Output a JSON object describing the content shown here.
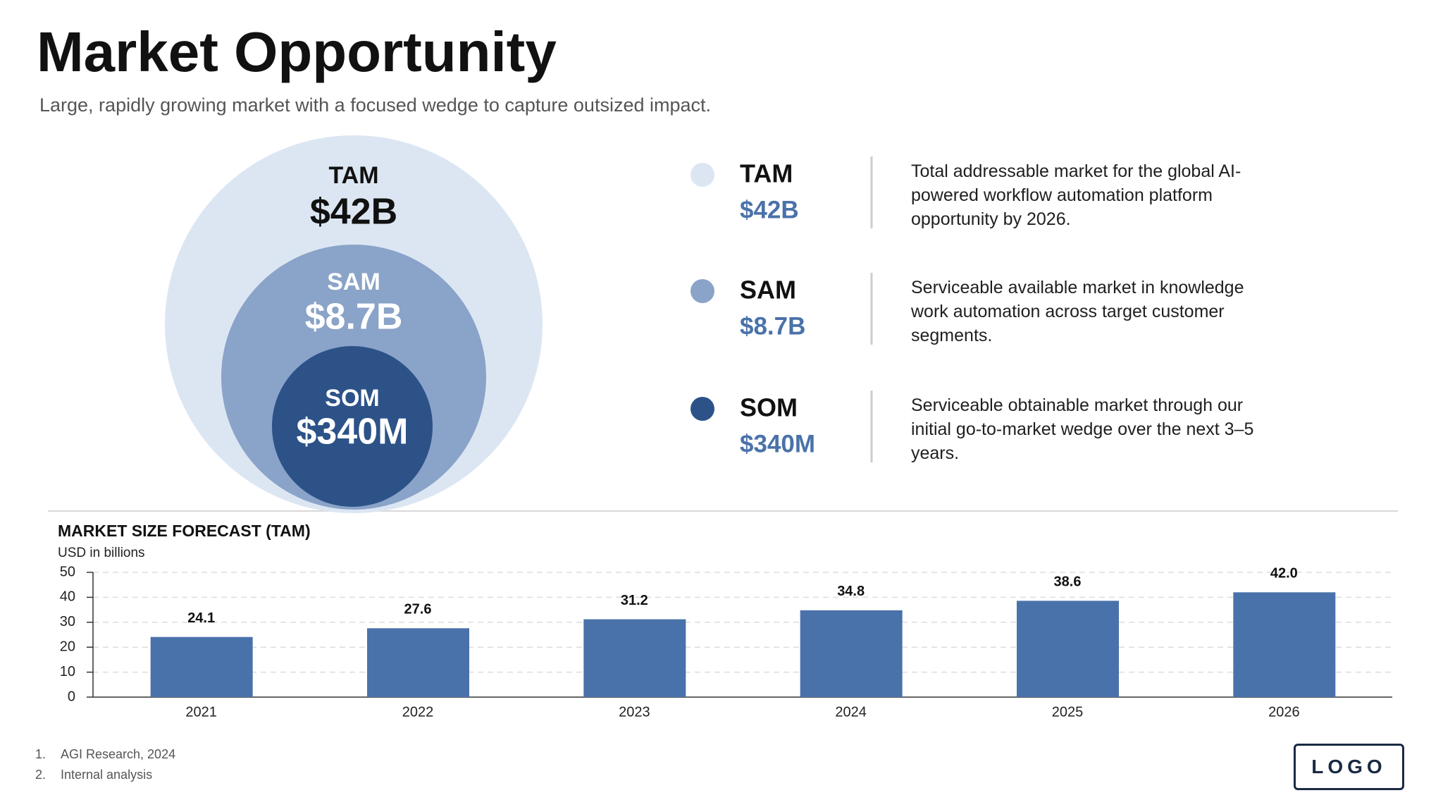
{
  "header": {
    "title": "Market Opportunity",
    "subtitle": "Large, rapidly growing market with a focused wedge to capture outsized impact."
  },
  "markets": [
    {
      "label": "TAM",
      "value": "$42B",
      "color": "#dce6f3",
      "description": "Total addressable market for the global AI-powered workflow automation platform opportunity by 2026."
    },
    {
      "label": "SAM",
      "value": "$8.7B",
      "color": "#8aa3c8",
      "description": "Serviceable available market in knowledge work automation across target customer segments."
    },
    {
      "label": "SOM",
      "value": "$340M",
      "color": "#2c5288",
      "description": "Serviceable obtainable market through our initial go-to-market wedge over the next 3–5 years."
    }
  ],
  "chart_data": {
    "type": "bar",
    "title": "MARKET SIZE FORECAST (TAM)",
    "y_label": "USD in billions",
    "categories": [
      "2021",
      "2022",
      "2023",
      "2024",
      "2025",
      "2026"
    ],
    "values": [
      24.1,
      27.6,
      31.2,
      34.8,
      38.6,
      42.0
    ],
    "value_labels": [
      "24.1",
      "27.6",
      "31.2",
      "34.8",
      "38.6",
      "42.0"
    ],
    "color": "#4a72aa",
    "ylim": [
      0,
      50
    ],
    "yticks": [
      0,
      10,
      20,
      30,
      40,
      50
    ],
    "grid": true
  },
  "footnotes": [
    {
      "number": "1.",
      "text": "AGI Research, 2024"
    },
    {
      "number": "2.",
      "text": "Internal analysis"
    }
  ],
  "logo": "LOGO"
}
